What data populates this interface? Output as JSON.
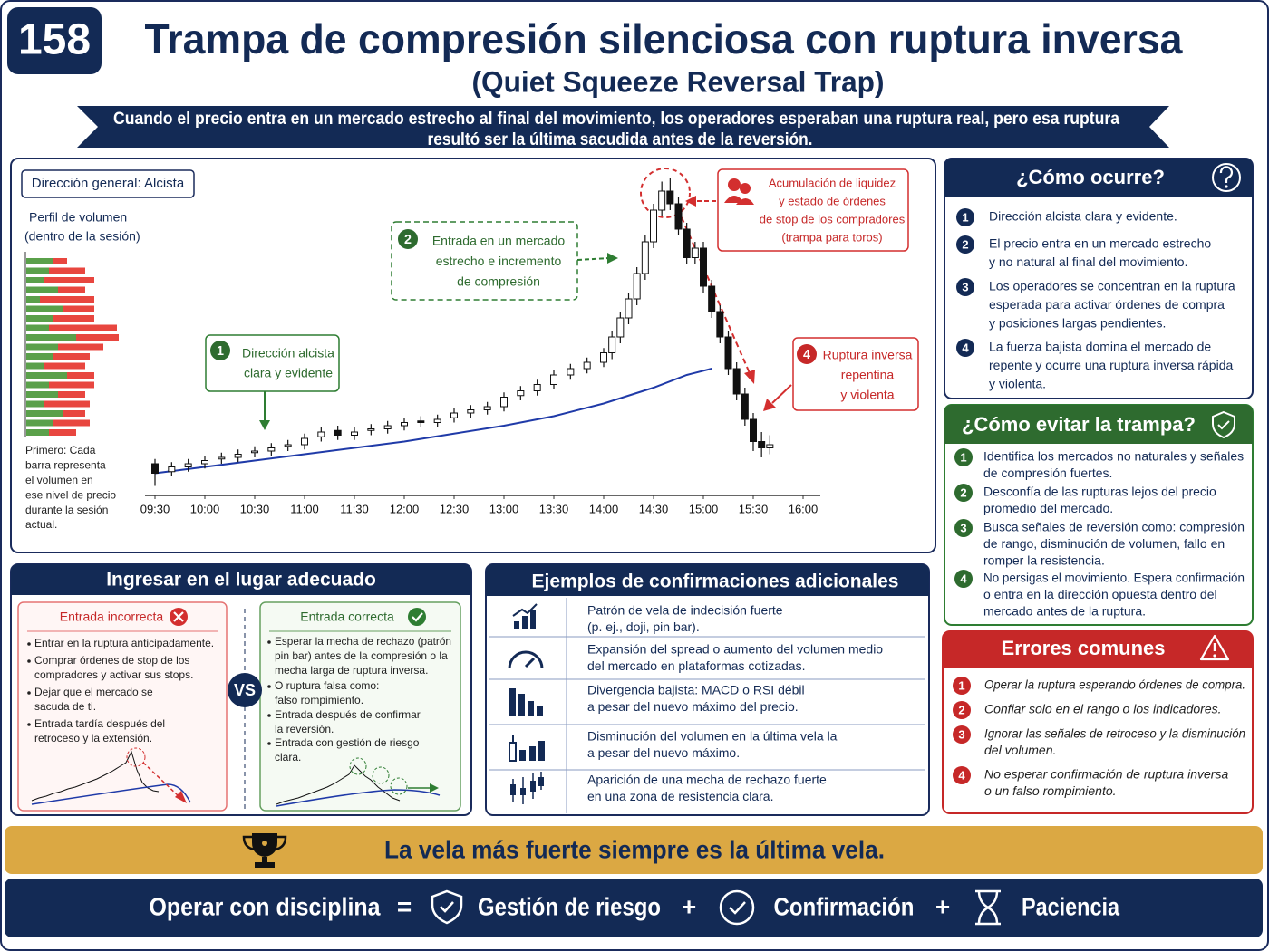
{
  "header": {
    "number": "158",
    "title": "Trampa de compresión silenciosa con ruptura inversa",
    "subtitle": "(Quiet Squeeze Reversal Trap)",
    "banner": [
      "Cuando el precio entra en un mercado estrecho al final del movimiento, los operadores esperaban una ruptura real, pero esa ruptura",
      "resultó ser la última sacudida antes de la reversión."
    ]
  },
  "panel": {
    "direction_label": "Dirección general: Alcista",
    "volume_title": "Perfil de volumen",
    "volume_subtitle": "(dentro de la sesión)",
    "volume_note": [
      "Primero: Cada",
      "barra representa",
      "el volumen en",
      "ese nivel de precio",
      "durante la sesión",
      "actual."
    ]
  },
  "chart_data": {
    "type": "candlestick",
    "xlim": [
      0,
      390
    ],
    "xticks": [
      {
        "value": 0,
        "label": "09:30"
      },
      {
        "value": 30,
        "label": "10:00"
      },
      {
        "value": 60,
        "label": "10:30"
      },
      {
        "value": 90,
        "label": "11:00"
      },
      {
        "value": 120,
        "label": "11:30"
      },
      {
        "value": 150,
        "label": "12:00"
      },
      {
        "value": 180,
        "label": "12:30"
      },
      {
        "value": 210,
        "label": "13:00"
      },
      {
        "value": 240,
        "label": "13:30"
      },
      {
        "value": 270,
        "label": "14:00"
      },
      {
        "value": 300,
        "label": "14:30"
      },
      {
        "value": 330,
        "label": "15:00"
      },
      {
        "value": 360,
        "label": "15:30"
      },
      {
        "value": 390,
        "label": "16:00"
      }
    ],
    "ylim": [
      0,
      102
    ],
    "up_color": "#ffffff",
    "down_color": "#111111",
    "x": [
      0,
      10,
      20,
      30,
      40,
      50,
      60,
      70,
      80,
      90,
      100,
      110,
      120,
      130,
      140,
      150,
      160,
      170,
      180,
      190,
      200,
      210,
      220,
      230,
      240,
      250,
      260,
      270,
      275,
      280,
      285,
      290,
      295,
      300,
      305,
      310,
      315,
      320,
      325,
      330,
      335,
      340,
      345,
      350,
      355,
      360,
      365,
      370
    ],
    "open": [
      10,
      7.5,
      9,
      10,
      11.5,
      12,
      13.5,
      14,
      15.5,
      16,
      18.5,
      20.5,
      19,
      20.5,
      21,
      22,
      23.5,
      23,
      24.5,
      26,
      27,
      28,
      31.5,
      33,
      35,
      38,
      40,
      42,
      45,
      50,
      56,
      62,
      70,
      80,
      90,
      96,
      92,
      84,
      75,
      78,
      66,
      58,
      50,
      40,
      32,
      24,
      17,
      15
    ],
    "high": [
      11.5,
      10.5,
      11.5,
      12.5,
      13.5,
      14.5,
      15.5,
      16.5,
      17.5,
      19.5,
      21.5,
      22,
      21.5,
      22.5,
      23.5,
      24.5,
      25,
      25.5,
      27.5,
      28.5,
      29.5,
      32.5,
      34.5,
      36.5,
      39.5,
      41.5,
      43.5,
      46.5,
      52,
      58,
      64,
      72,
      82,
      92,
      99,
      100,
      94,
      86,
      80,
      80,
      68,
      60,
      52,
      42,
      34,
      26,
      20,
      19
    ],
    "low": [
      3,
      6,
      7.5,
      8.5,
      10,
      10.5,
      12,
      12.5,
      14,
      14.5,
      17,
      17.5,
      17.5,
      19,
      19.5,
      20.5,
      21.5,
      21.5,
      23,
      24.5,
      25.5,
      26.5,
      30,
      31.5,
      33.5,
      36.5,
      38.5,
      40.5,
      43,
      48,
      54,
      60,
      68,
      78,
      88,
      90,
      82,
      73,
      73,
      64,
      56,
      48,
      38,
      30,
      22,
      14,
      12,
      13
    ],
    "close": [
      7,
      9,
      10,
      11,
      12,
      13,
      14,
      15,
      16,
      18,
      20,
      19,
      20,
      21,
      22,
      23,
      23,
      24,
      26,
      27,
      28,
      31,
      33,
      35,
      38,
      40,
      42,
      45,
      50,
      56,
      62,
      70,
      80,
      90,
      96,
      92,
      84,
      75,
      78,
      66,
      58,
      50,
      40,
      32,
      24,
      17,
      15,
      16
    ],
    "average": {
      "color": "#1f3aa8",
      "x": [
        0,
        30,
        60,
        90,
        120,
        150,
        180,
        210,
        240,
        270,
        300,
        320,
        335
      ],
      "values": [
        7,
        9,
        11,
        13,
        15,
        17,
        19.5,
        22,
        25,
        29,
        34,
        38,
        40
      ]
    },
    "volume_profile": {
      "buy_color": "#5aa04a",
      "sell_color": "#e8463f",
      "buy": [
        30,
        25,
        20,
        35,
        15,
        40,
        30,
        25,
        55,
        35,
        30,
        20,
        45,
        25,
        35,
        20,
        40,
        30,
        25
      ],
      "sell": [
        15,
        40,
        55,
        30,
        60,
        35,
        45,
        75,
        47,
        50,
        40,
        45,
        30,
        50,
        30,
        50,
        25,
        40,
        30
      ]
    },
    "annotations": [
      {
        "n": 1,
        "text": [
          "Dirección alcista",
          "clara y evidente"
        ]
      },
      {
        "n": 2,
        "text": [
          "Entrada en un mercado",
          "estrecho e incremento",
          "de compresión"
        ]
      },
      {
        "text": [
          "Acumulación de liquidez",
          "y estado de órdenes",
          "de stop de los compradores",
          "(trampa para toros)"
        ]
      },
      {
        "n": 4,
        "text": [
          "Ruptura inversa",
          "repentina",
          "y violenta"
        ]
      }
    ]
  },
  "how": {
    "title": "¿Cómo ocurre?",
    "items": [
      {
        "n": 1,
        "text": [
          "Dirección alcista clara y evidente."
        ]
      },
      {
        "n": 2,
        "text": [
          "El precio entra en un mercado estrecho",
          "y no natural al final del movimiento."
        ]
      },
      {
        "n": 3,
        "text": [
          "Los operadores se concentran en la ruptura",
          "esperada para activar órdenes de compra",
          "y posiciones largas pendientes."
        ]
      },
      {
        "n": 4,
        "text": [
          "La fuerza bajista domina el mercado de",
          "repente y ocurre una ruptura inversa rápida",
          "y violenta."
        ]
      }
    ]
  },
  "avoid": {
    "title": "¿Cómo evitar la trampa?",
    "items": [
      {
        "n": 1,
        "text": [
          "Identifica los mercados no naturales y señales",
          "de compresión fuertes."
        ]
      },
      {
        "n": 2,
        "text": [
          "Desconfía de las rupturas lejos del precio",
          "promedio del mercado."
        ]
      },
      {
        "n": 3,
        "text": [
          "Busca señales de reversión como: compresión",
          "de rango, disminución de volumen, fallo en",
          "romper la resistencia."
        ]
      },
      {
        "n": 4,
        "text": [
          "No persigas el movimiento. Espera confirmación",
          "o entra en la dirección opuesta dentro del",
          "mercado antes de la ruptura."
        ]
      }
    ]
  },
  "errors": {
    "title": "Errores comunes",
    "items": [
      {
        "n": 1,
        "text": [
          "Operar la ruptura esperando órdenes de compra."
        ]
      },
      {
        "n": 2,
        "text": [
          "Confiar solo en el rango o los indicadores."
        ]
      },
      {
        "n": 3,
        "text": [
          "Ignorar las señales de retroceso y la disminución",
          "del volumen."
        ]
      },
      {
        "n": 4,
        "text": [
          "No esperar confirmación de ruptura inversa",
          "o un falso rompimiento."
        ]
      }
    ]
  },
  "entry": {
    "title": "Ingresar en el lugar adecuado",
    "vs": "VS",
    "wrong": {
      "title": "Entrada incorrecta",
      "bullets": [
        [
          "Entrar en la ruptura anticipadamente."
        ],
        [
          "Comprar órdenes de stop de los",
          "compradores y activar sus stops."
        ],
        [
          "Dejar que el mercado se",
          "sacuda de ti."
        ],
        [
          "Entrada tardía después del",
          "retroceso y la extensión."
        ]
      ]
    },
    "right": {
      "title": "Entrada correcta",
      "bullets": [
        [
          "Esperar la mecha de rechazo (patrón",
          "pin bar) antes de la compresión o la",
          "mecha larga de ruptura inversa."
        ],
        [
          "O ruptura falsa como:",
          "falso rompimiento."
        ],
        [
          "Entrada después de confirmar",
          "la reversión."
        ],
        [
          "Entrada con gestión de riesgo",
          "clara."
        ]
      ]
    }
  },
  "examples": {
    "title": "Ejemplos de confirmaciones adicionales",
    "rows": [
      [
        "Patrón de vela de indecisión fuerte",
        "(p. ej., doji, pin bar)."
      ],
      [
        "Expansión del spread o aumento del volumen medio",
        "del mercado en plataformas cotizadas."
      ],
      [
        "Divergencia bajista: MACD o RSI débil",
        "a pesar del nuevo máximo del precio."
      ],
      [
        "Disminución del volumen en la última vela la",
        "a pesar del nuevo máximo."
      ],
      [
        "Aparición de una mecha de rechazo fuerte",
        "en una zona de resistencia clara."
      ]
    ]
  },
  "footer": {
    "motto": "La vela más fuerte siempre es la última vela.",
    "formula": [
      "Operar con disciplina",
      "=",
      "Gestión de riesgo",
      "+",
      "Confirmación",
      "+",
      "Paciencia"
    ]
  }
}
